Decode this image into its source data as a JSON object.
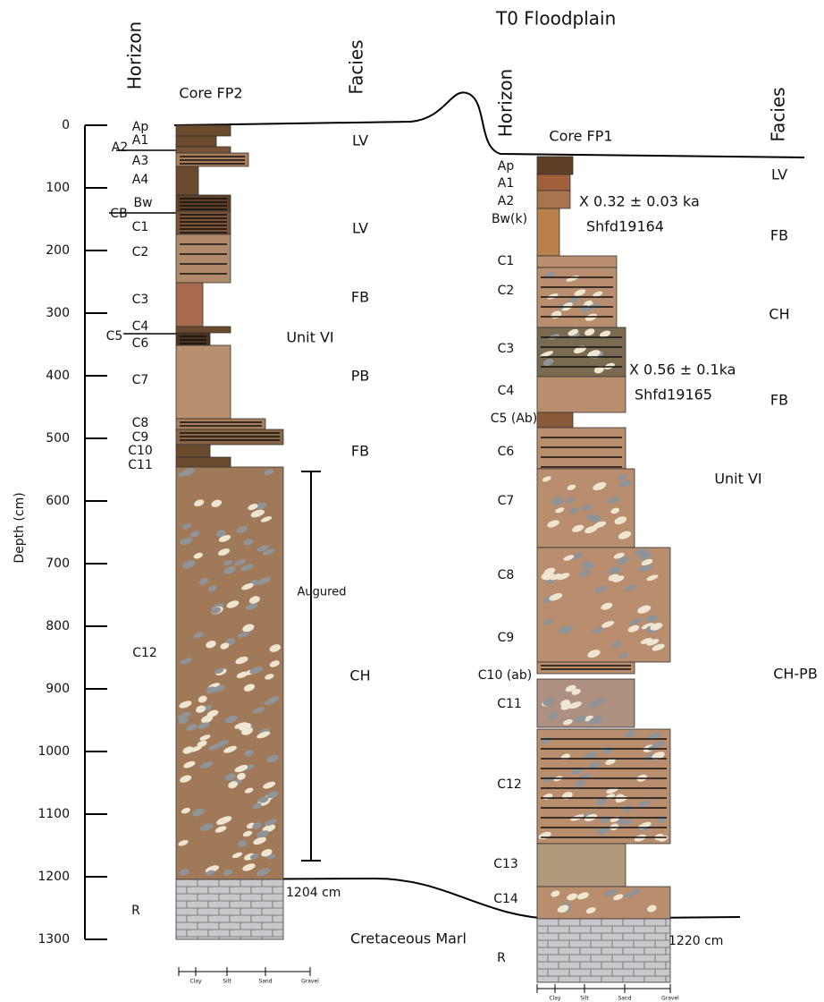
{
  "title": "T0 Floodplain",
  "depth_axis": {
    "label": "Depth (cm)",
    "ticks": [
      0,
      100,
      200,
      300,
      400,
      500,
      600,
      700,
      800,
      900,
      1000,
      1100,
      1200,
      1300
    ]
  },
  "core_fp2": {
    "name": "Core FP2",
    "horizon_header": "Horizon",
    "facies_header": "Facies",
    "horizons": [
      "Ap",
      "A1",
      "A2",
      "A3",
      "A4",
      "Bw",
      "CB",
      "C1",
      "C2",
      "C3",
      "C4",
      "C5",
      "C6",
      "C7",
      "C8",
      "C9",
      "C10",
      "C11",
      "C12",
      "R"
    ],
    "facies": [
      "LV",
      "LV",
      "FB",
      "PB",
      "FB",
      "CH"
    ],
    "unit": "Unit VI",
    "augured": "Augured",
    "base_depth": "1204 cm"
  },
  "core_fp1": {
    "name": "Core FP1",
    "horizon_header": "Horizon",
    "facies_header": "Facies",
    "horizons": [
      "Ap",
      "A1",
      "A2",
      "Bw(k)",
      "C1",
      "C2",
      "C3",
      "C4",
      "C5 (Ab)",
      "C6",
      "C7",
      "C8",
      "C9",
      "C10 (ab)",
      "C11",
      "C12",
      "C13",
      "C14",
      "R"
    ],
    "facies": [
      "LV",
      "FB",
      "CH",
      "FB",
      "CH-PB"
    ],
    "unit": "Unit VI",
    "base_depth": "1220 cm",
    "dates": [
      {
        "age": "X 0.32 ± 0.03 ka",
        "lab": "Shfd19164"
      },
      {
        "age": "X 0.56 ± 0.1ka",
        "lab": "Shfd19165"
      }
    ]
  },
  "bedrock": "Cretaceous Marl",
  "grain_size": [
    "Clay",
    "Silt",
    "Sand",
    "Gravel"
  ]
}
